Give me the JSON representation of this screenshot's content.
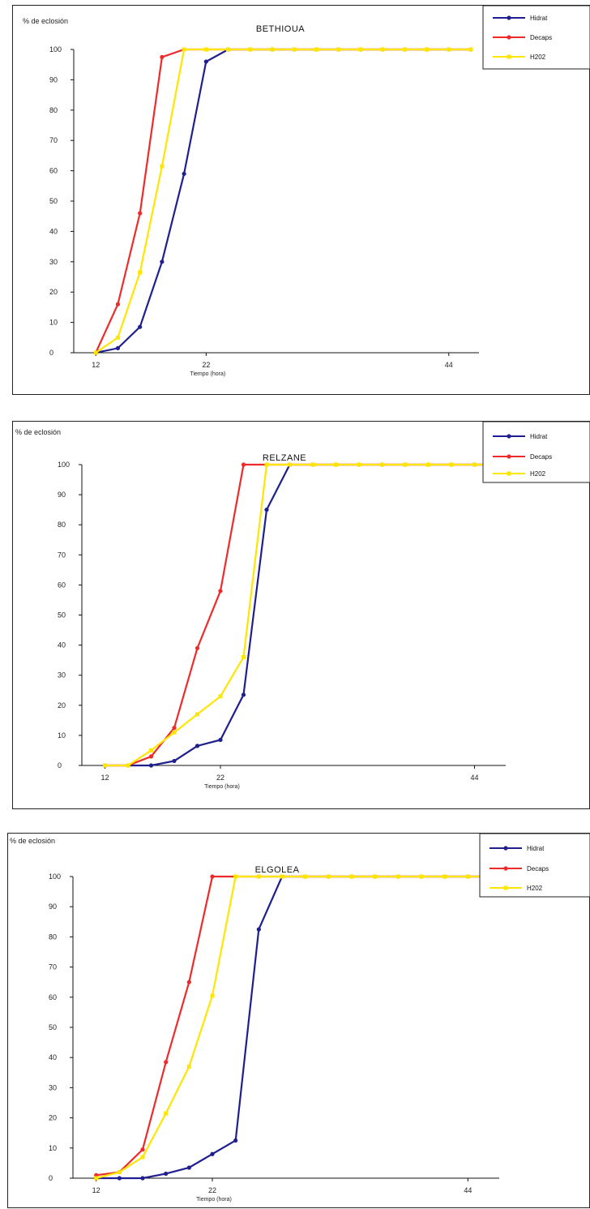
{
  "colors": {
    "Hidrat": "#1f1f8f",
    "Decaps": "#ee2b2b",
    "H202": "#ffe600"
  },
  "chart_data": [
    {
      "type": "line",
      "title": "BETHIOUA",
      "ylabel": "% de eclosión",
      "xlabel": "Tiempo (hora)",
      "ylim": [
        0,
        100
      ],
      "yticks": [
        0,
        10,
        20,
        30,
        40,
        50,
        60,
        70,
        80,
        90,
        100
      ],
      "xlim": [
        10,
        46
      ],
      "xtick_labels": [
        {
          "x": 12,
          "label": "12"
        },
        {
          "x": 22,
          "label": "22"
        },
        {
          "x": 44,
          "label": "44"
        }
      ],
      "legend": [
        "Hidrat",
        "Decaps",
        "H202"
      ],
      "series": [
        {
          "name": "Hidrat",
          "points": [
            [
              12,
              0
            ],
            [
              14,
              1.5
            ],
            [
              16,
              8.5
            ],
            [
              18,
              30
            ],
            [
              20,
              59
            ],
            [
              22,
              96
            ],
            [
              24,
              100
            ],
            [
              26,
              100
            ],
            [
              28,
              100
            ],
            [
              30,
              100
            ],
            [
              32,
              100
            ],
            [
              34,
              100
            ],
            [
              36,
              100
            ],
            [
              38,
              100
            ],
            [
              40,
              100
            ],
            [
              42,
              100
            ],
            [
              44,
              100
            ],
            [
              46,
              100
            ]
          ]
        },
        {
          "name": "Decaps",
          "points": [
            [
              12,
              0
            ],
            [
              14,
              16
            ],
            [
              16,
              46
            ],
            [
              18,
              97.5
            ],
            [
              20,
              100
            ],
            [
              22,
              100
            ],
            [
              24,
              100
            ],
            [
              26,
              100
            ],
            [
              28,
              100
            ],
            [
              30,
              100
            ],
            [
              32,
              100
            ],
            [
              34,
              100
            ],
            [
              36,
              100
            ],
            [
              38,
              100
            ],
            [
              40,
              100
            ],
            [
              42,
              100
            ],
            [
              44,
              100
            ],
            [
              46,
              100
            ]
          ]
        },
        {
          "name": "H202",
          "points": [
            [
              12,
              0
            ],
            [
              14,
              5
            ],
            [
              16,
              26.5
            ],
            [
              18,
              61.5
            ],
            [
              20,
              100
            ],
            [
              22,
              100
            ],
            [
              24,
              100
            ],
            [
              26,
              100
            ],
            [
              28,
              100
            ],
            [
              30,
              100
            ],
            [
              32,
              100
            ],
            [
              34,
              100
            ],
            [
              36,
              100
            ],
            [
              38,
              100
            ],
            [
              40,
              100
            ],
            [
              42,
              100
            ],
            [
              44,
              100
            ],
            [
              46,
              100
            ]
          ]
        }
      ]
    },
    {
      "type": "line",
      "title": "RELZANE",
      "ylabel": "% de eclosión",
      "xlabel": "Tiempo (hora)",
      "ylim": [
        0,
        100
      ],
      "yticks": [
        0,
        10,
        20,
        30,
        40,
        50,
        60,
        70,
        80,
        90,
        100
      ],
      "xlim": [
        10,
        46
      ],
      "xtick_labels": [
        {
          "x": 12,
          "label": "12"
        },
        {
          "x": 22,
          "label": "22"
        },
        {
          "x": 44,
          "label": "44"
        }
      ],
      "legend": [
        "Hidrat",
        "Decaps",
        "H202"
      ],
      "series": [
        {
          "name": "Hidrat",
          "points": [
            [
              12,
              0
            ],
            [
              14,
              0
            ],
            [
              16,
              0
            ],
            [
              18,
              1.5
            ],
            [
              20,
              6.5
            ],
            [
              22,
              8.5
            ],
            [
              24,
              23.5
            ],
            [
              26,
              85
            ],
            [
              28,
              100
            ],
            [
              30,
              100
            ],
            [
              32,
              100
            ],
            [
              34,
              100
            ],
            [
              36,
              100
            ],
            [
              38,
              100
            ],
            [
              40,
              100
            ],
            [
              42,
              100
            ],
            [
              44,
              100
            ],
            [
              46,
              100
            ]
          ]
        },
        {
          "name": "Decaps",
          "points": [
            [
              12,
              0
            ],
            [
              14,
              0
            ],
            [
              16,
              3
            ],
            [
              18,
              12.5
            ],
            [
              20,
              39
            ],
            [
              22,
              58
            ],
            [
              24,
              100
            ],
            [
              26,
              100
            ],
            [
              28,
              100
            ],
            [
              30,
              100
            ],
            [
              32,
              100
            ],
            [
              34,
              100
            ],
            [
              36,
              100
            ],
            [
              38,
              100
            ],
            [
              40,
              100
            ],
            [
              42,
              100
            ],
            [
              44,
              100
            ],
            [
              46,
              100
            ]
          ]
        },
        {
          "name": "H202",
          "points": [
            [
              12,
              0
            ],
            [
              14,
              0
            ],
            [
              16,
              5
            ],
            [
              18,
              11
            ],
            [
              20,
              17
            ],
            [
              22,
              23
            ],
            [
              24,
              36
            ],
            [
              26,
              100
            ],
            [
              28,
              100
            ],
            [
              30,
              100
            ],
            [
              32,
              100
            ],
            [
              34,
              100
            ],
            [
              36,
              100
            ],
            [
              38,
              100
            ],
            [
              40,
              100
            ],
            [
              42,
              100
            ],
            [
              44,
              100
            ],
            [
              46,
              100
            ]
          ]
        }
      ]
    },
    {
      "type": "line",
      "title": "ELGOLEA",
      "ylabel": "% de eclosión",
      "xlabel": "Tiempo (hora)",
      "ylim": [
        0,
        100
      ],
      "yticks": [
        0,
        10,
        20,
        30,
        40,
        50,
        60,
        70,
        80,
        90,
        100
      ],
      "xlim": [
        10,
        46
      ],
      "xtick_labels": [
        {
          "x": 12,
          "label": "12"
        },
        {
          "x": 22,
          "label": "22"
        },
        {
          "x": 44,
          "label": "44"
        }
      ],
      "legend": [
        "Hidrat",
        "Decaps",
        "H202"
      ],
      "series": [
        {
          "name": "Hidrat",
          "points": [
            [
              12,
              0
            ],
            [
              14,
              0
            ],
            [
              16,
              0
            ],
            [
              18,
              1.5
            ],
            [
              20,
              3.5
            ],
            [
              22,
              8
            ],
            [
              24,
              12.5
            ],
            [
              26,
              82.5
            ],
            [
              28,
              100
            ],
            [
              30,
              100
            ],
            [
              32,
              100
            ],
            [
              34,
              100
            ],
            [
              36,
              100
            ],
            [
              38,
              100
            ],
            [
              40,
              100
            ],
            [
              42,
              100
            ],
            [
              44,
              100
            ],
            [
              46,
              100
            ]
          ]
        },
        {
          "name": "Decaps",
          "points": [
            [
              12,
              1
            ],
            [
              14,
              2
            ],
            [
              16,
              9.5
            ],
            [
              18,
              38.5
            ],
            [
              20,
              65
            ],
            [
              22,
              100
            ],
            [
              24,
              100
            ],
            [
              26,
              100
            ],
            [
              28,
              100
            ],
            [
              30,
              100
            ],
            [
              32,
              100
            ],
            [
              34,
              100
            ],
            [
              36,
              100
            ],
            [
              38,
              100
            ],
            [
              40,
              100
            ],
            [
              42,
              100
            ],
            [
              44,
              100
            ],
            [
              46,
              100
            ]
          ]
        },
        {
          "name": "H202",
          "points": [
            [
              12,
              0
            ],
            [
              14,
              2
            ],
            [
              16,
              7
            ],
            [
              18,
              21.5
            ],
            [
              20,
              37
            ],
            [
              22,
              60.5
            ],
            [
              24,
              100
            ],
            [
              26,
              100
            ],
            [
              28,
              100
            ],
            [
              30,
              100
            ],
            [
              32,
              100
            ],
            [
              34,
              100
            ],
            [
              36,
              100
            ],
            [
              38,
              100
            ],
            [
              40,
              100
            ],
            [
              42,
              100
            ],
            [
              44,
              100
            ],
            [
              46,
              100
            ]
          ]
        }
      ]
    }
  ]
}
